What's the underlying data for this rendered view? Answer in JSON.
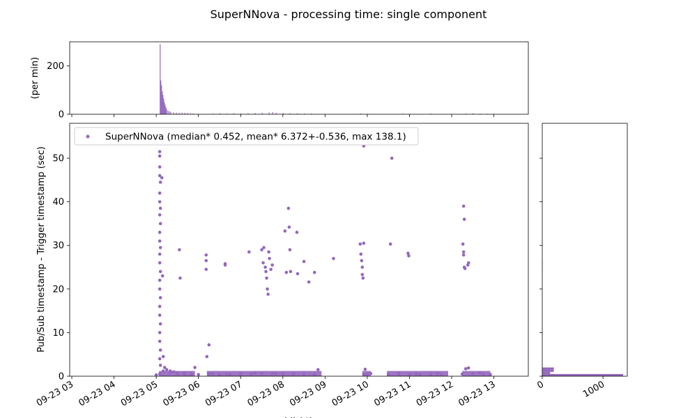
{
  "figure": {
    "title": "SuperNNova - processing time: single component",
    "accent_color": "#9467bd"
  },
  "chart_data": [
    {
      "id": "rate-histogram",
      "type": "bar",
      "ylabel": "(per min)",
      "ylim": [
        0,
        300
      ],
      "yticks": [
        0,
        200
      ],
      "xlim": [
        "09-23 02:57",
        "09-23 13:49"
      ],
      "grid": false,
      "bins": [
        [
          "09-23 05:05",
          290
        ],
        [
          "09-23 05:06",
          140
        ],
        [
          "09-23 05:07",
          120
        ],
        [
          "09-23 05:08",
          95
        ],
        [
          "09-23 05:09",
          80
        ],
        [
          "09-23 05:10",
          65
        ],
        [
          "09-23 05:11",
          50
        ],
        [
          "09-23 05:12",
          40
        ],
        [
          "09-23 05:13",
          30
        ],
        [
          "09-23 05:14",
          22
        ],
        [
          "09-23 05:16",
          15
        ],
        [
          "09-23 05:18",
          12
        ],
        [
          "09-23 05:20",
          10
        ],
        [
          "09-23 05:24",
          8
        ],
        [
          "09-23 05:28",
          7
        ],
        [
          "09-23 05:32",
          6
        ],
        [
          "09-23 05:36",
          7
        ],
        [
          "09-23 05:40",
          6
        ],
        [
          "09-23 05:44",
          5
        ],
        [
          "09-23 05:48",
          4
        ],
        [
          "09-23 05:52",
          3
        ],
        [
          "09-23 06:20",
          3
        ],
        [
          "09-23 06:30",
          4
        ],
        [
          "09-23 06:40",
          3
        ],
        [
          "09-23 06:50",
          4
        ],
        [
          "09-23 07:00",
          3
        ],
        [
          "09-23 07:10",
          4
        ],
        [
          "09-23 07:20",
          5
        ],
        [
          "09-23 07:30",
          6
        ],
        [
          "09-23 07:40",
          7
        ],
        [
          "09-23 07:45",
          9
        ],
        [
          "09-23 07:50",
          6
        ],
        [
          "09-23 08:00",
          5
        ],
        [
          "09-23 08:10",
          4
        ],
        [
          "09-23 08:20",
          4
        ],
        [
          "09-23 08:30",
          3
        ],
        [
          "09-23 08:40",
          3
        ],
        [
          "09-23 09:50",
          3
        ],
        [
          "09-23 10:00",
          2
        ],
        [
          "09-23 10:50",
          3
        ],
        [
          "09-23 11:00",
          2
        ],
        [
          "09-23 11:30",
          3
        ],
        [
          "09-23 12:20",
          3
        ],
        [
          "09-23 12:30",
          4
        ],
        [
          "09-23 12:40",
          3
        ],
        [
          "09-23 12:50",
          2
        ]
      ]
    },
    {
      "id": "latency-scatter",
      "type": "scatter",
      "ylabel": "Pub/Sub timestamp - Trigger timestamp (sec)",
      "xlabel": "publishtime",
      "xlim": [
        "09-23 02:57",
        "09-23 13:49"
      ],
      "ylim": [
        0,
        58
      ],
      "xticks": [
        "09-23 03",
        "09-23 04",
        "09-23 05",
        "09-23 06",
        "09-23 07",
        "09-23 08",
        "09-23 09",
        "09-23 10",
        "09-23 11",
        "09-23 12",
        "09-23 13"
      ],
      "yticks": [
        0,
        10,
        20,
        30,
        40,
        50
      ],
      "legend_position": "top-left",
      "series": [
        {
          "name": "SuperNNova (median* 0.452, mean* 6.372+-0.536, max 138.1)",
          "points": [
            [
              "09-23 05:05",
              51.5
            ],
            [
              "09-23 05:05",
              50.5
            ],
            [
              "09-23 05:05",
              48.0
            ],
            [
              "09-23 05:05",
              46.0
            ],
            [
              "09-23 05:06",
              44.5
            ],
            [
              "09-23 05:05",
              42.0
            ],
            [
              "09-23 05:05",
              40.0
            ],
            [
              "09-23 05:06",
              38.5
            ],
            [
              "09-23 05:05",
              37.0
            ],
            [
              "09-23 05:06",
              35.0
            ],
            [
              "09-23 05:05",
              33.0
            ],
            [
              "09-23 05:05",
              31.0
            ],
            [
              "09-23 05:06",
              29.5
            ],
            [
              "09-23 05:05",
              28.0
            ],
            [
              "09-23 05:05",
              26.0
            ],
            [
              "09-23 05:06",
              24.0
            ],
            [
              "09-23 05:05",
              22.0
            ],
            [
              "09-23 05:05",
              20.0
            ],
            [
              "09-23 05:06",
              18.0
            ],
            [
              "09-23 05:05",
              16.0
            ],
            [
              "09-23 05:05",
              14.0
            ],
            [
              "09-23 05:06",
              12.0
            ],
            [
              "09-23 05:05",
              10.0
            ],
            [
              "09-23 05:05",
              8.0
            ],
            [
              "09-23 05:06",
              6.0
            ],
            [
              "09-23 05:05",
              4.0
            ],
            [
              "09-23 05:06",
              2.5
            ],
            [
              "09-23 05:08",
              45.5
            ],
            [
              "09-23 05:09",
              23.0
            ],
            [
              "09-23 05:10",
              4.5
            ],
            [
              "09-23 05:12",
              2.0
            ],
            [
              "09-23 05:15",
              1.5
            ],
            [
              "09-23 05:20",
              1.2
            ],
            [
              "09-23 05:25",
              1.0
            ],
            [
              "09-23 05:30",
              0.8
            ],
            [
              "09-23 05:40",
              0.7
            ],
            [
              "09-23 05:55",
              2.0
            ],
            [
              "09-23 05:33",
              29.0
            ],
            [
              "09-23 05:34",
              22.5
            ],
            [
              "09-23 06:11",
              27.8
            ],
            [
              "09-23 06:11",
              26.5
            ],
            [
              "09-23 06:11",
              24.5
            ],
            [
              "09-23 06:12",
              4.5
            ],
            [
              "09-23 06:15",
              7.2
            ],
            [
              "09-23 06:38",
              25.8
            ],
            [
              "09-23 06:38",
              25.5
            ],
            [
              "09-23 06:20",
              0.6
            ],
            [
              "09-23 06:40",
              0.5
            ],
            [
              "09-23 07:00",
              0.6
            ],
            [
              "09-23 07:12",
              28.5
            ],
            [
              "09-23 07:20",
              0.7
            ],
            [
              "09-23 07:30",
              29.0
            ],
            [
              "09-23 07:32",
              26.0
            ],
            [
              "09-23 07:33",
              29.5
            ],
            [
              "09-23 07:35",
              25.0
            ],
            [
              "09-23 07:36",
              24.0
            ],
            [
              "09-23 07:37",
              22.5
            ],
            [
              "09-23 07:38",
              20.0
            ],
            [
              "09-23 07:39",
              18.8
            ],
            [
              "09-23 07:40",
              28.5
            ],
            [
              "09-23 07:41",
              27.0
            ],
            [
              "09-23 07:43",
              24.5
            ],
            [
              "09-23 07:45",
              25.5
            ],
            [
              "09-23 07:50",
              0.6
            ],
            [
              "09-23 08:03",
              33.3
            ],
            [
              "09-23 08:05",
              23.8
            ],
            [
              "09-23 08:08",
              38.5
            ],
            [
              "09-23 08:09",
              34.2
            ],
            [
              "09-23 08:10",
              29.0
            ],
            [
              "09-23 08:11",
              24.0
            ],
            [
              "09-23 08:20",
              33.0
            ],
            [
              "09-23 08:21",
              23.5
            ],
            [
              "09-23 08:30",
              26.3
            ],
            [
              "09-23 08:37",
              21.6
            ],
            [
              "09-23 08:45",
              23.8
            ],
            [
              "09-23 08:50",
              1.5
            ],
            [
              "09-23 09:12",
              27.0
            ],
            [
              "09-23 09:50",
              30.3
            ],
            [
              "09-23 09:51",
              28.0
            ],
            [
              "09-23 09:52",
              26.5
            ],
            [
              "09-23 09:53",
              25.0
            ],
            [
              "09-23 09:53",
              23.3
            ],
            [
              "09-23 09:54",
              22.5
            ],
            [
              "09-23 09:55",
              30.5
            ],
            [
              "09-23 09:55",
              52.8
            ],
            [
              "09-23 09:57",
              1.6
            ],
            [
              "09-23 10:05",
              0.6
            ],
            [
              "09-23 10:35",
              50.0
            ],
            [
              "09-23 10:33",
              30.3
            ],
            [
              "09-23 10:45",
              0.7
            ],
            [
              "09-23 10:58",
              28.2
            ],
            [
              "09-23 10:59",
              27.6
            ],
            [
              "09-23 11:10",
              0.5
            ],
            [
              "09-23 11:40",
              0.6
            ],
            [
              "09-23 12:17",
              39.0
            ],
            [
              "09-23 12:18",
              36.0
            ],
            [
              "09-23 12:16",
              30.3
            ],
            [
              "09-23 12:17",
              28.5
            ],
            [
              "09-23 12:17",
              27.8
            ],
            [
              "09-23 12:18",
              25.0
            ],
            [
              "09-23 12:19",
              24.7
            ],
            [
              "09-23 12:23",
              25.5
            ],
            [
              "09-23 12:24",
              26.0
            ],
            [
              "09-23 12:20",
              1.7
            ],
            [
              "09-23 12:24",
              1.9
            ],
            [
              "09-23 12:40",
              0.8
            ]
          ],
          "low_band": [
            [
              "09-23 05:00",
              0.3
            ],
            [
              "09-23 05:05",
              0.5
            ],
            [
              "09-23 05:10",
              1.2
            ],
            [
              "09-23 05:20",
              0.9
            ],
            [
              "09-23 05:30",
              0.6
            ],
            [
              "09-23 05:40",
              0.5
            ],
            [
              "09-23 05:50",
              0.5
            ],
            [
              "09-23 06:00",
              0.4
            ],
            [
              "09-23 06:15",
              0.5
            ],
            [
              "09-23 06:30",
              0.4
            ],
            [
              "09-23 06:45",
              0.4
            ],
            [
              "09-23 07:00",
              0.5
            ],
            [
              "09-23 07:15",
              0.5
            ],
            [
              "09-23 07:30",
              0.6
            ],
            [
              "09-23 07:45",
              0.6
            ],
            [
              "09-23 08:00",
              0.5
            ],
            [
              "09-23 08:15",
              0.5
            ],
            [
              "09-23 08:30",
              0.4
            ],
            [
              "09-23 08:45",
              0.4
            ],
            [
              "09-23 09:55",
              0.4
            ],
            [
              "09-23 10:00",
              0.4
            ],
            [
              "09-23 10:30",
              0.4
            ],
            [
              "09-23 10:45",
              0.5
            ],
            [
              "09-23 11:00",
              0.4
            ],
            [
              "09-23 11:15",
              0.4
            ],
            [
              "09-23 11:30",
              0.4
            ],
            [
              "09-23 11:45",
              0.4
            ],
            [
              "09-23 12:15",
              0.5
            ],
            [
              "09-23 12:30",
              0.6
            ],
            [
              "09-23 12:45",
              0.5
            ],
            [
              "09-23 12:55",
              0.4
            ]
          ]
        }
      ]
    },
    {
      "id": "latency-histogram",
      "type": "bar",
      "orientation": "horizontal",
      "xlim": [
        0,
        1400
      ],
      "ylim": [
        0,
        58
      ],
      "xticks": [
        0,
        1000
      ],
      "bins": [
        [
          0,
          0.5,
          1330
        ],
        [
          0.5,
          1.0,
          130
        ],
        [
          1.0,
          1.5,
          190
        ],
        [
          1.5,
          2.0,
          190
        ],
        [
          25.5,
          26.5,
          4
        ]
      ]
    }
  ]
}
